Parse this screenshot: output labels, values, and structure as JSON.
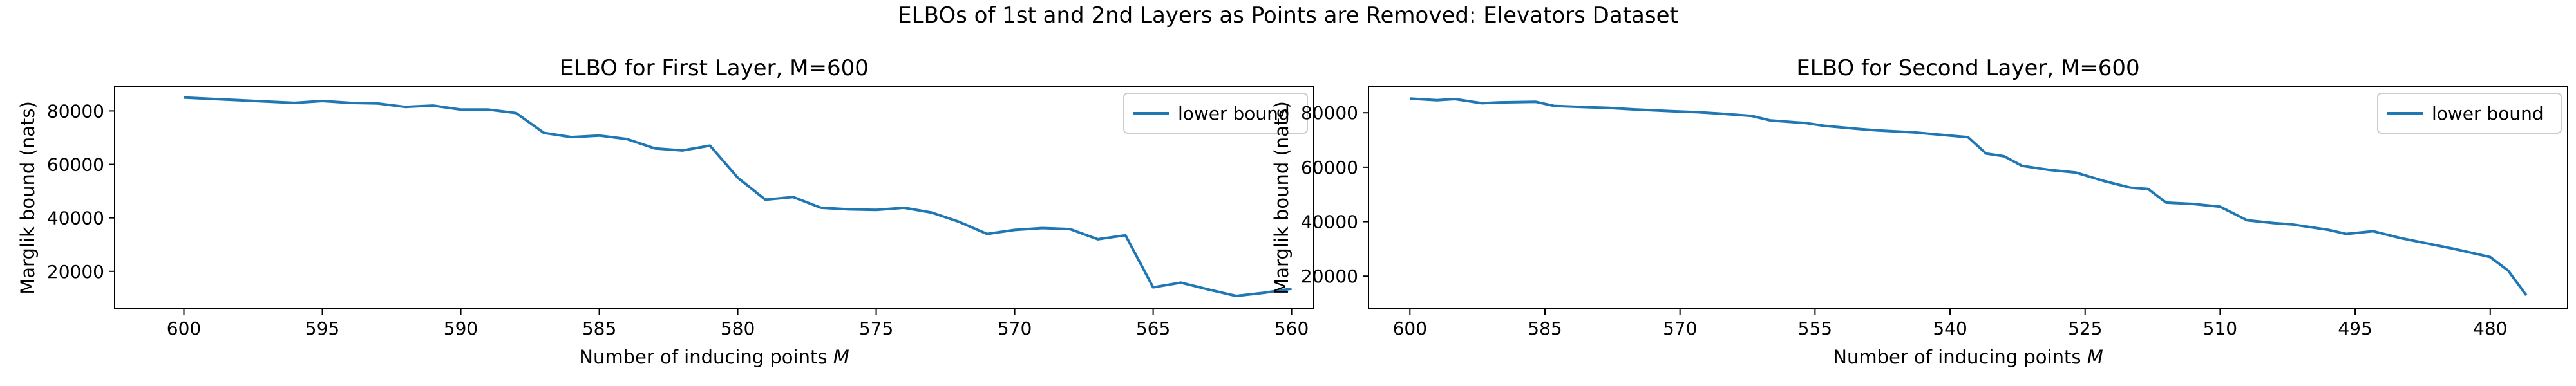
{
  "figure_title": "ELBOs of 1st and 2nd Layers as Points are Removed: Elevators Dataset",
  "chart_data": [
    {
      "type": "line",
      "title": "ELBO for First Layer, M=600",
      "xlabel": "Number of inducing points M",
      "xlabel_main": "Number of inducing points ",
      "xlabel_var": "M",
      "ylabel": "Marglik bound (nats)",
      "x_inverted": true,
      "xlim": [
        602.5,
        559.2
      ],
      "ylim": [
        6000,
        89000
      ],
      "xticks": [
        600,
        595,
        590,
        585,
        580,
        575,
        570,
        565,
        560
      ],
      "yticks": [
        20000,
        40000,
        60000,
        80000
      ],
      "legend": {
        "position": "top-right",
        "entries": [
          "lower bound"
        ]
      },
      "color": "#1f77b4",
      "series": [
        {
          "name": "lower bound",
          "x": [
            600,
            599,
            598,
            597,
            596,
            595,
            594,
            593,
            592,
            591,
            590,
            589,
            588,
            587,
            586,
            585,
            584,
            583,
            582,
            581,
            580,
            579,
            578,
            577,
            576,
            575,
            574,
            573,
            572,
            571,
            570,
            569,
            568,
            567,
            566,
            565,
            564,
            563,
            562,
            561,
            560
          ],
          "y": [
            85000,
            84500,
            84000,
            83500,
            83000,
            83700,
            83000,
            82800,
            81500,
            82000,
            80500,
            80500,
            79200,
            71800,
            70200,
            70800,
            69500,
            66000,
            65200,
            67000,
            55000,
            46800,
            47800,
            43800,
            43200,
            43000,
            43800,
            42000,
            38500,
            34000,
            35500,
            36200,
            35800,
            32000,
            33500,
            14000,
            15800,
            13200,
            10800,
            12000,
            13500
          ]
        }
      ]
    },
    {
      "type": "line",
      "title": "ELBO for Second Layer,  M=600",
      "xlabel": "Number of inducing points M",
      "xlabel_main": "Number of inducing points ",
      "xlabel_var": "M",
      "ylabel": "Marglik bound (nats)",
      "x_inverted": true,
      "xlim": [
        604.6,
        471.4
      ],
      "ylim": [
        8000,
        89500
      ],
      "xticks": [
        600,
        585,
        570,
        555,
        540,
        525,
        510,
        495,
        480
      ],
      "yticks": [
        20000,
        40000,
        60000,
        80000
      ],
      "legend": {
        "position": "top-right",
        "entries": [
          "lower bound"
        ]
      },
      "color": "#1f77b4",
      "series": [
        {
          "name": "lower bound",
          "x": [
            600,
            597,
            595,
            592,
            590,
            586,
            584,
            580,
            578,
            575,
            571,
            568,
            566,
            562,
            560,
            556,
            554,
            550,
            548,
            544,
            542,
            538,
            536,
            534,
            532,
            529,
            526,
            523,
            520,
            518,
            516,
            513,
            510,
            507,
            504,
            502,
            500,
            498,
            496,
            493,
            490,
            487,
            484,
            482,
            480,
            478,
            476
          ],
          "y": [
            85200,
            84600,
            85000,
            83500,
            83800,
            84000,
            82500,
            82000,
            81800,
            81200,
            80600,
            80200,
            79800,
            78800,
            77200,
            76200,
            75200,
            74000,
            73500,
            72800,
            72200,
            71000,
            65000,
            64000,
            60500,
            59000,
            58000,
            55000,
            52500,
            52000,
            47000,
            46500,
            45500,
            40500,
            39500,
            39000,
            38000,
            37000,
            35500,
            36500,
            34000,
            32000,
            30000,
            28500,
            27000,
            22000,
            13000
          ]
        }
      ]
    }
  ]
}
